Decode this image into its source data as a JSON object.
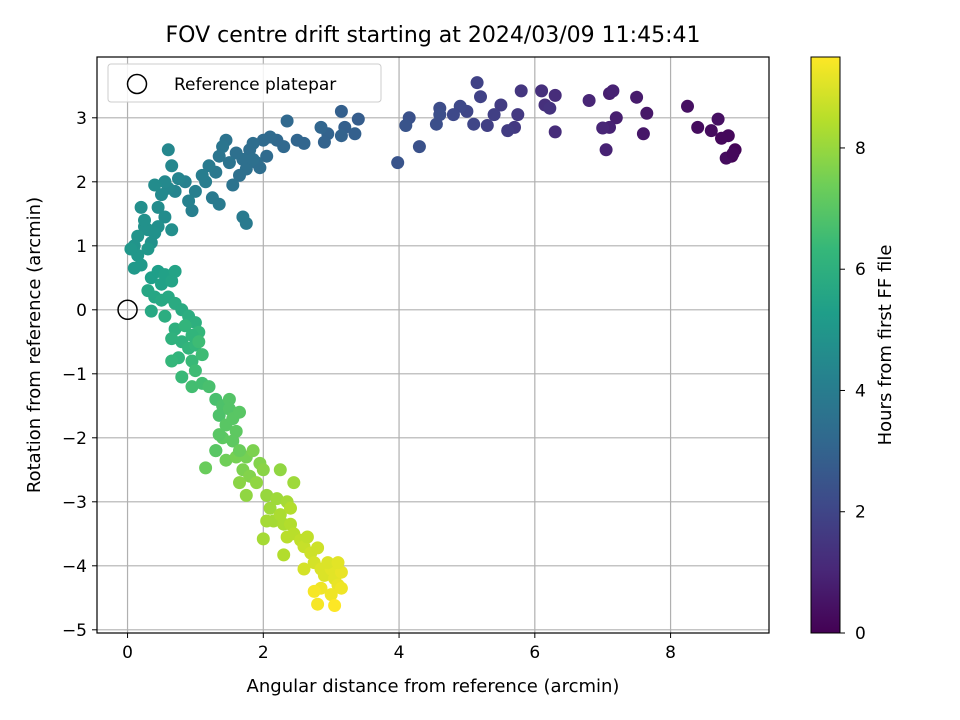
{
  "chart_data": {
    "type": "scatter",
    "title": "FOV centre drift starting at 2024/03/09 11:45:41",
    "xlabel": "Angular distance from reference (arcmin)",
    "ylabel": "Rotation from reference (arcmin)",
    "xlim": [
      -0.45,
      9.45
    ],
    "ylim": [
      -5.05,
      3.95
    ],
    "xticks": [
      0,
      2,
      4,
      6,
      8
    ],
    "xtick_labels": [
      "0",
      "2",
      "4",
      "6",
      "8"
    ],
    "yticks": [
      -5,
      -4,
      -3,
      -2,
      -1,
      0,
      1,
      2,
      3
    ],
    "ytick_labels": [
      "−5",
      "−4",
      "−3",
      "−2",
      "−1",
      "0",
      "1",
      "2",
      "3"
    ],
    "grid": true,
    "legend": {
      "location": "upper-left",
      "entries": [
        "Reference platepar"
      ]
    },
    "reference_point": {
      "x": 0,
      "y": 0,
      "marker": "open-circle"
    },
    "colorbar": {
      "label": "Hours from first FF file",
      "range": [
        0,
        9.5
      ],
      "ticks": [
        0,
        2,
        4,
        6,
        8
      ],
      "tick_labels": [
        "0",
        "2",
        "4",
        "6",
        "8"
      ],
      "colormap": "viridis",
      "stops": [
        "#440154",
        "#482878",
        "#3e4989",
        "#31688e",
        "#26828e",
        "#1f9e89",
        "#35b779",
        "#6ece58",
        "#b5de2b",
        "#fde725"
      ]
    },
    "points": [
      [
        8.9,
        2.4,
        0.1
      ],
      [
        8.95,
        2.5,
        0.1
      ],
      [
        8.85,
        2.72,
        0.2
      ],
      [
        8.75,
        2.68,
        0.2
      ],
      [
        8.6,
        2.8,
        0.3
      ],
      [
        8.4,
        2.85,
        0.3
      ],
      [
        8.25,
        3.18,
        0.4
      ],
      [
        8.7,
        2.98,
        0.4
      ],
      [
        8.82,
        2.37,
        0.3
      ],
      [
        8.92,
        2.44,
        0.2
      ],
      [
        7.6,
        2.75,
        0.6
      ],
      [
        7.65,
        3.07,
        0.6
      ],
      [
        7.5,
        3.32,
        0.7
      ],
      [
        7.2,
        3.0,
        0.8
      ],
      [
        7.1,
        2.85,
        0.9
      ],
      [
        7.1,
        3.38,
        0.8
      ],
      [
        7.05,
        2.5,
        0.9
      ],
      [
        7.15,
        3.42,
        0.9
      ],
      [
        6.8,
        3.27,
        1.0
      ],
      [
        7.0,
        2.84,
        1.0
      ],
      [
        6.3,
        2.78,
        1.2
      ],
      [
        6.15,
        3.2,
        1.3
      ],
      [
        6.1,
        3.42,
        1.3
      ],
      [
        6.3,
        3.35,
        1.2
      ],
      [
        6.22,
        3.15,
        1.4
      ],
      [
        5.8,
        3.42,
        1.5
      ],
      [
        5.75,
        3.05,
        1.6
      ],
      [
        5.7,
        2.85,
        1.6
      ],
      [
        5.6,
        2.8,
        1.7
      ],
      [
        5.5,
        3.2,
        1.7
      ],
      [
        5.4,
        3.05,
        1.8
      ],
      [
        5.3,
        2.88,
        1.8
      ],
      [
        5.15,
        3.55,
        1.9
      ],
      [
        5.2,
        3.33,
        1.9
      ],
      [
        5.1,
        2.9,
        2.0
      ],
      [
        5.0,
        3.1,
        2.0
      ],
      [
        4.9,
        3.18,
        2.1
      ],
      [
        4.8,
        3.05,
        2.1
      ],
      [
        4.6,
        3.15,
        2.2
      ],
      [
        4.55,
        2.9,
        2.3
      ],
      [
        4.6,
        3.05,
        2.3
      ],
      [
        4.3,
        2.55,
        2.4
      ],
      [
        4.15,
        3.0,
        2.4
      ],
      [
        4.1,
        2.88,
        2.5
      ],
      [
        3.98,
        2.3,
        2.5
      ],
      [
        3.4,
        2.98,
        2.8
      ],
      [
        3.35,
        2.75,
        2.9
      ],
      [
        3.2,
        2.85,
        2.9
      ],
      [
        3.15,
        3.1,
        2.9
      ],
      [
        3.15,
        2.72,
        3.0
      ],
      [
        2.95,
        2.75,
        3.0
      ],
      [
        2.9,
        2.62,
        3.0
      ],
      [
        2.85,
        2.85,
        3.1
      ],
      [
        2.6,
        2.6,
        3.1
      ],
      [
        2.5,
        2.65,
        3.1
      ],
      [
        2.35,
        2.95,
        3.2
      ],
      [
        2.3,
        2.55,
        3.2
      ],
      [
        2.2,
        2.65,
        3.2
      ],
      [
        2.1,
        2.7,
        3.3
      ],
      [
        2.05,
        2.4,
        3.3
      ],
      [
        2.0,
        2.65,
        3.3
      ],
      [
        1.95,
        2.22,
        3.4
      ],
      [
        1.9,
        2.3,
        3.4
      ],
      [
        1.85,
        2.6,
        3.4
      ],
      [
        1.8,
        2.5,
        3.4
      ],
      [
        1.75,
        2.2,
        3.5
      ],
      [
        1.7,
        2.35,
        3.5
      ],
      [
        1.65,
        2.1,
        3.5
      ],
      [
        1.6,
        2.45,
        3.5
      ],
      [
        1.55,
        1.95,
        3.6
      ],
      [
        1.5,
        2.3,
        3.6
      ],
      [
        1.45,
        2.65,
        3.6
      ],
      [
        1.85,
        2.35,
        3.5
      ],
      [
        1.7,
        1.45,
        3.9
      ],
      [
        1.75,
        1.35,
        3.9
      ],
      [
        1.4,
        2.55,
        3.7
      ],
      [
        1.35,
        2.4,
        3.7
      ],
      [
        1.3,
        2.15,
        3.8
      ],
      [
        1.35,
        1.65,
        3.9
      ],
      [
        1.25,
        1.75,
        3.9
      ],
      [
        1.2,
        2.25,
        3.9
      ],
      [
        1.15,
        2.0,
        4.0
      ],
      [
        1.1,
        2.1,
        4.0
      ],
      [
        1.0,
        1.85,
        4.1
      ],
      [
        0.95,
        1.55,
        4.1
      ],
      [
        0.9,
        1.7,
        4.2
      ],
      [
        0.85,
        2.0,
        4.2
      ],
      [
        0.75,
        2.05,
        4.3
      ],
      [
        0.7,
        1.85,
        4.3
      ],
      [
        0.65,
        2.25,
        4.4
      ],
      [
        0.6,
        2.5,
        4.4
      ],
      [
        0.6,
        1.9,
        4.4
      ],
      [
        0.55,
        2.0,
        4.5
      ],
      [
        0.5,
        1.8,
        4.5
      ],
      [
        0.4,
        1.95,
        4.6
      ],
      [
        0.45,
        1.6,
        4.6
      ],
      [
        0.55,
        1.45,
        4.6
      ],
      [
        0.65,
        1.25,
        4.7
      ],
      [
        0.45,
        1.3,
        4.7
      ],
      [
        0.4,
        1.2,
        4.8
      ],
      [
        0.35,
        1.05,
        4.8
      ],
      [
        0.3,
        1.25,
        4.8
      ],
      [
        0.2,
        1.6,
        4.7
      ],
      [
        0.25,
        1.3,
        4.8
      ],
      [
        0.15,
        1.15,
        4.9
      ],
      [
        0.1,
        1.0,
        4.9
      ],
      [
        0.15,
        0.85,
        5.0
      ],
      [
        0.3,
        0.95,
        5.0
      ],
      [
        0.2,
        0.7,
        5.1
      ],
      [
        0.1,
        0.65,
        5.1
      ],
      [
        0.05,
        0.95,
        5.0
      ],
      [
        0.25,
        1.4,
        4.8
      ],
      [
        0.35,
        0.5,
        5.3
      ],
      [
        0.45,
        0.6,
        5.3
      ],
      [
        0.5,
        0.4,
        5.4
      ],
      [
        0.55,
        0.55,
        5.4
      ],
      [
        0.65,
        0.45,
        5.5
      ],
      [
        0.7,
        0.6,
        5.5
      ],
      [
        0.3,
        0.3,
        5.6
      ],
      [
        0.4,
        0.2,
        5.6
      ],
      [
        0.5,
        0.15,
        5.7
      ],
      [
        0.6,
        0.2,
        5.7
      ],
      [
        0.7,
        0.1,
        5.8
      ],
      [
        0.8,
        0.0,
        5.8
      ],
      [
        0.35,
        -0.02,
        5.7
      ],
      [
        0.55,
        -0.1,
        5.9
      ],
      [
        0.9,
        -0.1,
        5.9
      ],
      [
        1.0,
        -0.2,
        6.0
      ],
      [
        0.7,
        -0.3,
        6.0
      ],
      [
        0.8,
        -0.5,
        6.1
      ],
      [
        0.65,
        -0.45,
        6.1
      ],
      [
        0.75,
        -0.75,
        6.2
      ],
      [
        0.9,
        -0.6,
        6.2
      ],
      [
        1.0,
        -0.55,
        6.3
      ],
      [
        1.05,
        -0.35,
        6.3
      ],
      [
        0.85,
        -0.25,
        6.2
      ],
      [
        0.95,
        -0.4,
        6.2
      ],
      [
        0.65,
        -0.8,
        6.3
      ],
      [
        0.8,
        -1.05,
        6.4
      ],
      [
        0.95,
        -0.8,
        6.4
      ],
      [
        1.0,
        -0.95,
        6.5
      ],
      [
        1.1,
        -0.7,
        6.5
      ],
      [
        1.05,
        -0.5,
        6.5
      ],
      [
        0.95,
        -1.2,
        6.6
      ],
      [
        1.1,
        -1.15,
        6.6
      ],
      [
        1.2,
        -1.2,
        6.7
      ],
      [
        1.3,
        -1.4,
        6.7
      ],
      [
        1.4,
        -1.5,
        6.8
      ],
      [
        1.35,
        -1.65,
        6.8
      ],
      [
        1.5,
        -1.4,
        6.9
      ],
      [
        1.5,
        -1.55,
        6.9
      ],
      [
        1.45,
        -1.8,
        7.0
      ],
      [
        1.55,
        -1.7,
        7.0
      ],
      [
        1.6,
        -1.9,
        7.1
      ],
      [
        1.4,
        -2.0,
        7.1
      ],
      [
        1.55,
        -2.05,
        7.1
      ],
      [
        1.65,
        -1.6,
        7.0
      ],
      [
        1.35,
        -1.95,
        7.0
      ],
      [
        1.3,
        -2.2,
        7.2
      ],
      [
        1.45,
        -2.35,
        7.4
      ],
      [
        1.6,
        -2.3,
        7.5
      ],
      [
        1.7,
        -2.5,
        7.6
      ],
      [
        1.75,
        -2.3,
        7.5
      ],
      [
        1.8,
        -2.6,
        7.7
      ],
      [
        1.65,
        -2.7,
        7.8
      ],
      [
        1.85,
        -2.2,
        7.6
      ],
      [
        1.95,
        -2.4,
        7.7
      ],
      [
        1.9,
        -2.7,
        7.9
      ],
      [
        2.0,
        -2.5,
        7.8
      ],
      [
        2.05,
        -2.9,
        8.0
      ],
      [
        2.1,
        -3.1,
        8.1
      ],
      [
        2.2,
        -2.95,
        8.1
      ],
      [
        2.15,
        -3.3,
        8.2
      ],
      [
        2.05,
        -3.3,
        8.2
      ],
      [
        2.25,
        -3.2,
        8.3
      ],
      [
        2.3,
        -3.35,
        8.3
      ],
      [
        2.35,
        -3.0,
        8.2
      ],
      [
        2.4,
        -3.1,
        8.4
      ],
      [
        2.4,
        -3.35,
        8.4
      ],
      [
        2.35,
        -3.55,
        8.5
      ],
      [
        2.45,
        -3.5,
        8.5
      ],
      [
        2.55,
        -3.6,
        8.6
      ],
      [
        2.6,
        -3.7,
        8.7
      ],
      [
        2.7,
        -3.8,
        8.8
      ],
      [
        2.75,
        -3.95,
        8.9
      ],
      [
        2.85,
        -4.05,
        9.0
      ],
      [
        2.9,
        -4.15,
        9.0
      ],
      [
        3.0,
        -4.05,
        9.1
      ],
      [
        3.05,
        -4.2,
        9.1
      ],
      [
        3.15,
        -4.1,
        9.2
      ],
      [
        3.1,
        -4.3,
        9.2
      ],
      [
        3.0,
        -4.45,
        9.3
      ],
      [
        3.15,
        -4.35,
        9.3
      ],
      [
        2.85,
        -4.35,
        9.3
      ],
      [
        2.75,
        -4.4,
        9.4
      ],
      [
        2.8,
        -4.6,
        9.4
      ],
      [
        3.05,
        -4.62,
        9.5
      ],
      [
        2.0,
        -3.58,
        8.2
      ],
      [
        2.3,
        -3.83,
        8.4
      ],
      [
        2.45,
        -2.7,
        8.1
      ],
      [
        2.25,
        -2.5,
        7.9
      ],
      [
        1.65,
        -2.2,
        7.3
      ],
      [
        1.3,
        -2.2,
        7.0
      ],
      [
        1.15,
        -2.47,
        7.3
      ],
      [
        1.75,
        -2.9,
        7.9
      ],
      [
        2.65,
        -3.55,
        8.6
      ],
      [
        2.8,
        -3.72,
        8.8
      ],
      [
        2.6,
        -4.05,
        8.9
      ],
      [
        2.95,
        -3.95,
        9.0
      ],
      [
        3.1,
        -3.95,
        9.1
      ]
    ]
  }
}
